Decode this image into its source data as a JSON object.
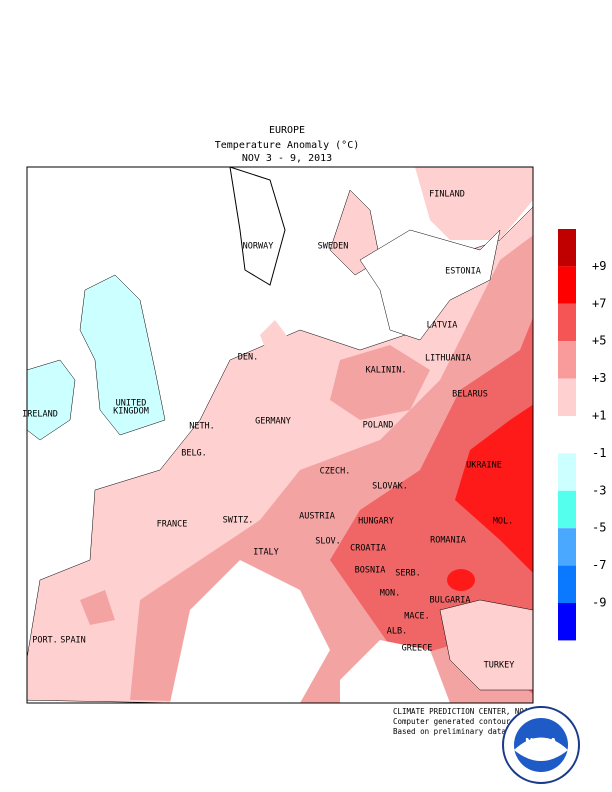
{
  "header": {
    "region": "EUROPE",
    "title": "Temperature Anomaly (°C)",
    "period": "NOV 3 - 9, 2013"
  },
  "map": {
    "labels": [
      "FINLAND",
      "NORWAY",
      "SWEDEN",
      "ESTONIA",
      "LATVIA",
      "LITHUANIA",
      "KALININ.",
      "DEN.",
      "UNITED",
      "KINGDOM",
      "IRELAND",
      "BELARUS",
      "NETH.",
      "GERMANY",
      "POLAND",
      "BELG.",
      "UKRAINE",
      "CZECH.",
      "SLOVAK.",
      "FRANCE",
      "SWITZ.",
      "AUSTRIA",
      "HUNGARY",
      "MOL.",
      "ROMANIA",
      "SLOV.",
      "CROATIA",
      "ITALY",
      "BOSNIA",
      "SERB.",
      "BULGARIA",
      "MON.",
      "MACE.",
      "PORT.",
      "SPAIN",
      "ALB.",
      "GREECE",
      "TURKEY"
    ]
  },
  "legend": {
    "labels": [
      "+9",
      "+7",
      "+5",
      "+3",
      "+1",
      "-1",
      "-3",
      "-5",
      "-7",
      "-9"
    ]
  },
  "credits": {
    "lines": [
      "CLIMATE PREDICTION CENTER, NOAA",
      "Computer generated contours",
      "Based on preliminary data"
    ],
    "logo": "NOAA"
  }
}
